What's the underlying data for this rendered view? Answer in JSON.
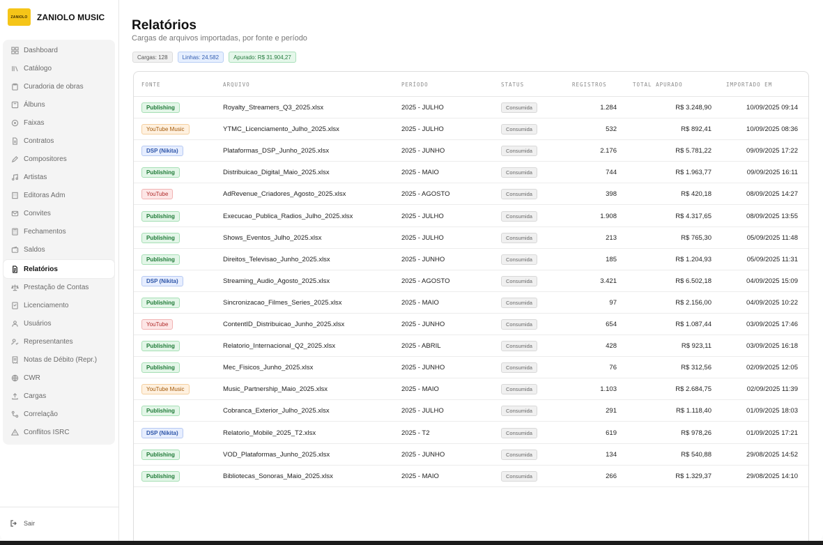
{
  "brand": {
    "logo_text": "ZANIOLO",
    "name": "ZANIOLO MUSIC"
  },
  "sidebar": {
    "items": [
      {
        "label": "Dashboard",
        "icon": "grid-icon"
      },
      {
        "label": "Catálogo",
        "icon": "library-icon"
      },
      {
        "label": "Curadoria de obras",
        "icon": "clipboard-icon"
      },
      {
        "label": "Álbuns",
        "icon": "album-icon"
      },
      {
        "label": "Faixas",
        "icon": "disc-icon"
      },
      {
        "label": "Contratos",
        "icon": "file-icon"
      },
      {
        "label": "Compositores",
        "icon": "pen-icon"
      },
      {
        "label": "Artistas",
        "icon": "music-icon"
      },
      {
        "label": "Editoras Adm",
        "icon": "building-icon"
      },
      {
        "label": "Convites",
        "icon": "mail-icon"
      },
      {
        "label": "Fechamentos",
        "icon": "calculator-icon"
      },
      {
        "label": "Saldos",
        "icon": "wallet-icon"
      },
      {
        "label": "Relatórios",
        "icon": "report-icon",
        "active": true
      },
      {
        "label": "Prestação de Contas",
        "icon": "scale-icon"
      },
      {
        "label": "Licenciamento",
        "icon": "license-icon"
      },
      {
        "label": "Usuários",
        "icon": "users-icon"
      },
      {
        "label": "Representantes",
        "icon": "user-check-icon"
      },
      {
        "label": "Notas de Débito (Repr.)",
        "icon": "receipt-icon"
      },
      {
        "label": "CWR",
        "icon": "globe-icon"
      },
      {
        "label": "Cargas",
        "icon": "upload-icon"
      },
      {
        "label": "Correlação",
        "icon": "link-icon"
      },
      {
        "label": "Conflitos ISRC",
        "icon": "alert-icon"
      }
    ],
    "logout_label": "Sair"
  },
  "header": {
    "title": "Relatórios",
    "subtitle": "Cargas de arquivos importadas, por fonte e período"
  },
  "summary": {
    "loads": "Cargas: 128",
    "lines": "Linhas: 24.582",
    "total": "Apurado: R$ 31.904,27"
  },
  "colors": {
    "accent_brand": "#f5c518",
    "publishing": "#1f7a37",
    "youtube_music": "#a2590a",
    "dsp": "#2d55a8",
    "youtube": "#b02a2a"
  },
  "table": {
    "columns": [
      "FONTE",
      "ARQUIVO",
      "PERÍODO",
      "STATUS",
      "REGISTROS",
      "TOTAL APURADO",
      "IMPORTADO EM"
    ],
    "rows": [
      {
        "source": "Publishing",
        "kind": "pub",
        "file": "Royalty_Streamers_Q3_2025.xlsx",
        "period": "2025 - JULHO",
        "status": "Consumida",
        "records": "1.284",
        "total": "R$ 3.248,90",
        "imported": "10/09/2025 09:14"
      },
      {
        "source": "YouTube Music",
        "kind": "ytm",
        "file": "YTMC_Licenciamento_Julho_2025.xlsx",
        "period": "2025 - JULHO",
        "status": "Consumida",
        "records": "532",
        "total": "R$ 892,41",
        "imported": "10/09/2025 08:36"
      },
      {
        "source": "DSP (Nikita)",
        "kind": "dsp",
        "file": "Plataformas_DSP_Junho_2025.xlsx",
        "period": "2025 - JUNHO",
        "status": "Consumida",
        "records": "2.176",
        "total": "R$ 5.781,22",
        "imported": "09/09/2025 17:22"
      },
      {
        "source": "Publishing",
        "kind": "pub",
        "file": "Distribuicao_Digital_Maio_2025.xlsx",
        "period": "2025 - MAIO",
        "status": "Consumida",
        "records": "744",
        "total": "R$ 1.963,77",
        "imported": "09/09/2025 16:11"
      },
      {
        "source": "YouTube",
        "kind": "yt",
        "file": "AdRevenue_Criadores_Agosto_2025.xlsx",
        "period": "2025 - AGOSTO",
        "status": "Consumida",
        "records": "398",
        "total": "R$ 420,18",
        "imported": "08/09/2025 14:27"
      },
      {
        "source": "Publishing",
        "kind": "pub",
        "file": "Execucao_Publica_Radios_Julho_2025.xlsx",
        "period": "2025 - JULHO",
        "status": "Consumida",
        "records": "1.908",
        "total": "R$ 4.317,65",
        "imported": "08/09/2025 13:55"
      },
      {
        "source": "Publishing",
        "kind": "pub",
        "file": "Shows_Eventos_Julho_2025.xlsx",
        "period": "2025 - JULHO",
        "status": "Consumida",
        "records": "213",
        "total": "R$ 765,30",
        "imported": "05/09/2025 11:48"
      },
      {
        "source": "Publishing",
        "kind": "pub",
        "file": "Direitos_Televisao_Junho_2025.xlsx",
        "period": "2025 - JUNHO",
        "status": "Consumida",
        "records": "185",
        "total": "R$ 1.204,93",
        "imported": "05/09/2025 11:31"
      },
      {
        "source": "DSP (Nikita)",
        "kind": "dsp",
        "file": "Streaming_Audio_Agosto_2025.xlsx",
        "period": "2025 - AGOSTO",
        "status": "Consumida",
        "records": "3.421",
        "total": "R$ 6.502,18",
        "imported": "04/09/2025 15:09"
      },
      {
        "source": "Publishing",
        "kind": "pub",
        "file": "Sincronizacao_Filmes_Series_2025.xlsx",
        "period": "2025 - MAIO",
        "status": "Consumida",
        "records": "97",
        "total": "R$ 2.156,00",
        "imported": "04/09/2025 10:22"
      },
      {
        "source": "YouTube",
        "kind": "yt",
        "file": "ContentID_Distribuicao_Junho_2025.xlsx",
        "period": "2025 - JUNHO",
        "status": "Consumida",
        "records": "654",
        "total": "R$ 1.087,44",
        "imported": "03/09/2025 17:46"
      },
      {
        "source": "Publishing",
        "kind": "pub",
        "file": "Relatorio_Internacional_Q2_2025.xlsx",
        "period": "2025 - ABRIL",
        "status": "Consumida",
        "records": "428",
        "total": "R$ 923,11",
        "imported": "03/09/2025 16:18"
      },
      {
        "source": "Publishing",
        "kind": "pub",
        "file": "Mec_Fisicos_Junho_2025.xlsx",
        "period": "2025 - JUNHO",
        "status": "Consumida",
        "records": "76",
        "total": "R$ 312,56",
        "imported": "02/09/2025 12:05"
      },
      {
        "source": "YouTube Music",
        "kind": "ytm",
        "file": "Music_Partnership_Maio_2025.xlsx",
        "period": "2025 - MAIO",
        "status": "Consumida",
        "records": "1.103",
        "total": "R$ 2.684,75",
        "imported": "02/09/2025 11:39"
      },
      {
        "source": "Publishing",
        "kind": "pub",
        "file": "Cobranca_Exterior_Julho_2025.xlsx",
        "period": "2025 - JULHO",
        "status": "Consumida",
        "records": "291",
        "total": "R$ 1.118,40",
        "imported": "01/09/2025 18:03"
      },
      {
        "source": "DSP (Nikita)",
        "kind": "dsp",
        "file": "Relatorio_Mobile_2025_T2.xlsx",
        "period": "2025 - T2",
        "status": "Consumida",
        "records": "619",
        "total": "R$ 978,26",
        "imported": "01/09/2025 17:21"
      },
      {
        "source": "Publishing",
        "kind": "pub",
        "file": "VOD_Plataformas_Junho_2025.xlsx",
        "period": "2025 - JUNHO",
        "status": "Consumida",
        "records": "134",
        "total": "R$ 540,88",
        "imported": "29/08/2025 14:52"
      },
      {
        "source": "Publishing",
        "kind": "pub",
        "file": "Bibliotecas_Sonoras_Maio_2025.xlsx",
        "period": "2025 - MAIO",
        "status": "Consumida",
        "records": "266",
        "total": "R$ 1.329,37",
        "imported": "29/08/2025 14:10"
      }
    ]
  }
}
